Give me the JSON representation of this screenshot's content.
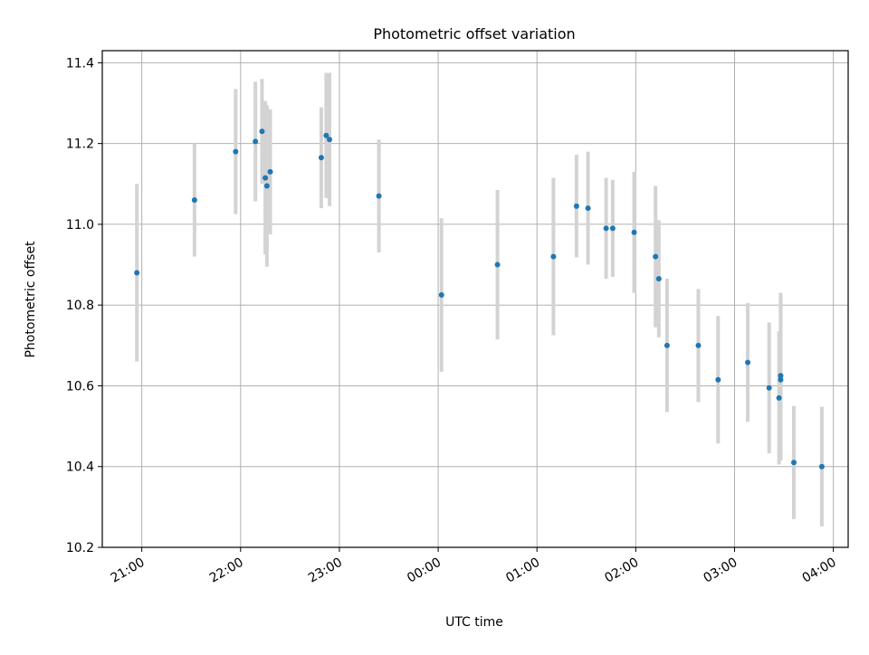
{
  "chart_data": {
    "type": "scatter",
    "title": "Photometric offset variation",
    "xlabel": "UTC time",
    "ylabel": "Photometric offset",
    "x_ticks": [
      "21:00",
      "22:00",
      "23:00",
      "00:00",
      "01:00",
      "02:00",
      "03:00",
      "04:00"
    ],
    "y_ticks": [
      "10.2",
      "10.4",
      "10.6",
      "10.8",
      "11.0",
      "11.2",
      "11.4"
    ],
    "xlim": [
      "20:36",
      "04:09"
    ],
    "ylim": [
      10.2,
      11.43
    ],
    "grid": true,
    "colors": {
      "points": "#1f77b4",
      "errorbars": "#d3d3d3",
      "grid": "#b0b0b0"
    },
    "series": [
      {
        "points": [
          {
            "x": "20:57",
            "y": 10.88,
            "yerr": 0.22
          },
          {
            "x": "21:32",
            "y": 11.06,
            "yerr": 0.14
          },
          {
            "x": "21:57",
            "y": 11.18,
            "yerr": 0.155
          },
          {
            "x": "22:09",
            "y": 11.205,
            "yerr": 0.148
          },
          {
            "x": "22:13",
            "y": 11.23,
            "yerr": 0.13
          },
          {
            "x": "22:15",
            "y": 11.115,
            "yerr": 0.19
          },
          {
            "x": "22:16",
            "y": 11.095,
            "yerr": 0.2
          },
          {
            "x": "22:18",
            "y": 11.13,
            "yerr": 0.155
          },
          {
            "x": "22:49",
            "y": 11.165,
            "yerr": 0.125
          },
          {
            "x": "22:52",
            "y": 11.22,
            "yerr": 0.155
          },
          {
            "x": "22:54",
            "y": 11.21,
            "yerr": 0.165
          },
          {
            "x": "23:24",
            "y": 11.07,
            "yerr": 0.14
          },
          {
            "x": "00:02",
            "y": 10.825,
            "yerr": 0.19
          },
          {
            "x": "00:36",
            "y": 10.9,
            "yerr": 0.185
          },
          {
            "x": "01:10",
            "y": 10.92,
            "yerr": 0.195
          },
          {
            "x": "01:24",
            "y": 11.045,
            "yerr": 0.127
          },
          {
            "x": "01:31",
            "y": 11.04,
            "yerr": 0.14
          },
          {
            "x": "01:42",
            "y": 10.99,
            "yerr": 0.125
          },
          {
            "x": "01:46",
            "y": 10.99,
            "yerr": 0.12
          },
          {
            "x": "01:59",
            "y": 10.98,
            "yerr": 0.15
          },
          {
            "x": "02:12",
            "y": 10.92,
            "yerr": 0.175
          },
          {
            "x": "02:14",
            "y": 10.865,
            "yerr": 0.145
          },
          {
            "x": "02:19",
            "y": 10.7,
            "yerr": 0.165
          },
          {
            "x": "02:38",
            "y": 10.7,
            "yerr": 0.14
          },
          {
            "x": "02:50",
            "y": 10.615,
            "yerr": 0.158
          },
          {
            "x": "03:08",
            "y": 10.658,
            "yerr": 0.147
          },
          {
            "x": "03:21",
            "y": 10.595,
            "yerr": 0.162
          },
          {
            "x": "03:27",
            "y": 10.57,
            "yerr": 0.165
          },
          {
            "x": "03:28",
            "y": 10.625,
            "yerr": 0.205
          },
          {
            "x": "03:28",
            "y": 10.615,
            "yerr": 0.2
          },
          {
            "x": "03:36",
            "y": 10.41,
            "yerr": 0.14
          },
          {
            "x": "03:53",
            "y": 10.4,
            "yerr": 0.148
          }
        ]
      }
    ]
  }
}
